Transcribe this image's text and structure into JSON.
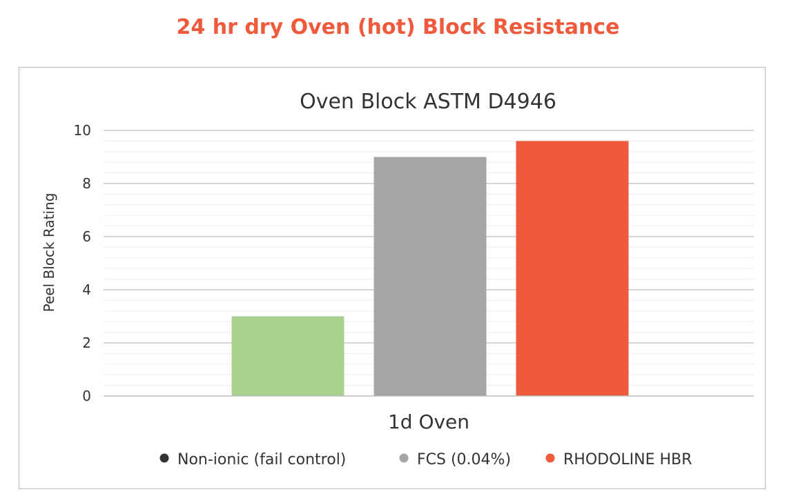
{
  "page": {
    "title": "24 hr dry Oven (hot) Block Resistance"
  },
  "colors": {
    "title": "#ef5a3c",
    "grid_major": "#bdbdbd",
    "grid_minor": "#ececec"
  },
  "chart_data": {
    "type": "bar",
    "title": "Oven Block ASTM D4946",
    "xlabel": "",
    "ylabel": "Peel Block Rating",
    "categories": [
      "1d Oven"
    ],
    "ylim": [
      0,
      10
    ],
    "yticks": [
      0,
      2,
      4,
      6,
      8,
      10
    ],
    "grid": "horizontal",
    "legend_position": "bottom",
    "series": [
      {
        "name": "Non-ionic (fail control)",
        "values": [
          3.0
        ],
        "color": "#a9d18e",
        "legend_color": "#333333"
      },
      {
        "name": "FCS (0.04%)",
        "values": [
          9.0
        ],
        "color": "#a5a5a7",
        "legend_color": "#a5a5a7"
      },
      {
        "name": "RHODOLINE HBR",
        "values": [
          9.6
        ],
        "color": "#ef5a3c",
        "legend_color": "#ef5a3c"
      }
    ]
  }
}
